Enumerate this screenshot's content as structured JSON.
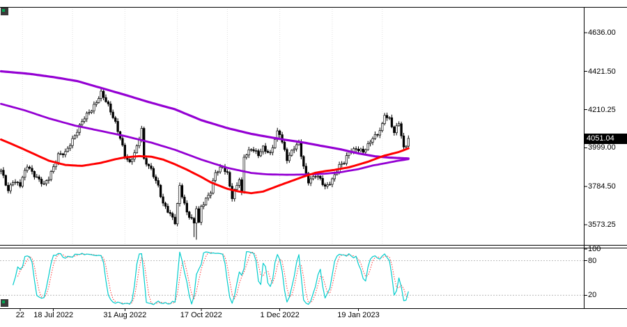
{
  "labels": {
    "current_price": "4051.04"
  },
  "colors": {
    "background": "#ffffff",
    "border": "#000000",
    "candle": "#000000",
    "candle_up_fill": "#ffffff",
    "candle_down_fill": "#000000",
    "grid": "#e0e0e0",
    "level_line": "#bbbbbb",
    "price_tag_bg": "#000000",
    "price_tag_text": "#ffffff"
  },
  "chart_data": {
    "type": "candlestick",
    "title": "",
    "candle_count": 172,
    "current_price": 4051.04,
    "price_range": {
      "min": 3462,
      "max": 4778
    },
    "price_axis": [
      [
        "4636.00",
        4636.0
      ],
      [
        "4421.50",
        4421.5
      ],
      [
        "4210.25",
        4210.25
      ],
      [
        "3999.00",
        3999.0
      ],
      [
        "3784.50",
        3784.5
      ],
      [
        "3573.25",
        3573.25
      ]
    ],
    "indicator_axis": [
      [
        "100",
        100
      ],
      [
        "80",
        80
      ],
      [
        "20",
        20
      ]
    ],
    "x_labels": [
      [
        "22",
        8
      ],
      [
        "18 Jul 2022",
        22
      ],
      [
        "31 Aug 2022",
        52
      ],
      [
        "17 Oct 2022",
        84
      ],
      [
        "1 Dec 2022",
        117
      ],
      [
        "19 Jan 2023",
        150
      ]
    ],
    "grid_indices": [
      9,
      30,
      52,
      74,
      95,
      117,
      139,
      160
    ],
    "close_keypoints": [
      [
        0,
        3870
      ],
      [
        3,
        3762
      ],
      [
        5,
        3820
      ],
      [
        8,
        3792
      ],
      [
        11,
        3900
      ],
      [
        14,
        3852
      ],
      [
        18,
        3790
      ],
      [
        20,
        3831
      ],
      [
        24,
        3962
      ],
      [
        27,
        3966
      ],
      [
        31,
        4072
      ],
      [
        34,
        4145
      ],
      [
        38,
        4210
      ],
      [
        42,
        4305
      ],
      [
        45,
        4228
      ],
      [
        48,
        4140
      ],
      [
        50,
        4058
      ],
      [
        52,
        3955
      ],
      [
        54,
        3908
      ],
      [
        57,
        4006
      ],
      [
        59,
        4110
      ],
      [
        60,
        3933
      ],
      [
        63,
        3873
      ],
      [
        66,
        3790
      ],
      [
        68,
        3693
      ],
      [
        70,
        3647
      ],
      [
        73,
        3586
      ],
      [
        75,
        3791
      ],
      [
        78,
        3640
      ],
      [
        81,
        3577
      ],
      [
        82,
        3670
      ],
      [
        83,
        3583
      ],
      [
        84,
        3678
      ],
      [
        88,
        3753
      ],
      [
        90,
        3859
      ],
      [
        93,
        3901
      ],
      [
        95,
        3856
      ],
      [
        97,
        3719
      ],
      [
        100,
        3828
      ],
      [
        101,
        3748
      ],
      [
        102,
        3956
      ],
      [
        105,
        3992
      ],
      [
        108,
        3958
      ],
      [
        110,
        4004
      ],
      [
        113,
        3966
      ],
      [
        116,
        4080
      ],
      [
        117,
        4077
      ],
      [
        120,
        3941
      ],
      [
        123,
        3998
      ],
      [
        125,
        4020
      ],
      [
        127,
        3896
      ],
      [
        129,
        3818
      ],
      [
        132,
        3844
      ],
      [
        134,
        3822
      ],
      [
        136,
        3783
      ],
      [
        139,
        3824
      ],
      [
        142,
        3895
      ],
      [
        144,
        3920
      ],
      [
        146,
        3983
      ],
      [
        149,
        3991
      ],
      [
        152,
        3973
      ],
      [
        154,
        4016
      ],
      [
        156,
        4060
      ],
      [
        158,
        4071
      ],
      [
        160,
        4119
      ],
      [
        161,
        4180
      ],
      [
        163,
        4160
      ],
      [
        165,
        4090
      ],
      [
        167,
        4136
      ],
      [
        169,
        3990
      ],
      [
        170,
        4012
      ],
      [
        171,
        4051.04
      ]
    ],
    "low_overrides": {
      "81": 3505,
      "82": 3491
    },
    "series": [
      {
        "name": "ma-mid-purple",
        "color": "#9400d3",
        "width": 2.8,
        "keypoints": [
          [
            0,
            4242
          ],
          [
            10,
            4206
          ],
          [
            20,
            4162
          ],
          [
            31,
            4122
          ],
          [
            42,
            4092
          ],
          [
            52,
            4064
          ],
          [
            63,
            4028
          ],
          [
            73,
            3988
          ],
          [
            84,
            3934
          ],
          [
            95,
            3888
          ],
          [
            105,
            3860
          ],
          [
            112,
            3852
          ],
          [
            120,
            3850
          ],
          [
            127,
            3851
          ],
          [
            136,
            3856
          ],
          [
            142,
            3863
          ],
          [
            150,
            3881
          ],
          [
            156,
            3901
          ],
          [
            161,
            3913
          ],
          [
            166,
            3926
          ],
          [
            171,
            3936
          ]
        ]
      },
      {
        "name": "ma-slow-purple",
        "color": "#9400d3",
        "width": 3.2,
        "keypoints": [
          [
            0,
            4422
          ],
          [
            12,
            4408
          ],
          [
            22,
            4390
          ],
          [
            32,
            4368
          ],
          [
            42,
            4330
          ],
          [
            52,
            4292
          ],
          [
            62,
            4252
          ],
          [
            73,
            4212
          ],
          [
            84,
            4152
          ],
          [
            95,
            4108
          ],
          [
            105,
            4076
          ],
          [
            117,
            4048
          ],
          [
            127,
            4028
          ],
          [
            136,
            4006
          ],
          [
            142,
            3992
          ],
          [
            150,
            3968
          ],
          [
            157,
            3952
          ],
          [
            163,
            3945
          ],
          [
            171,
            3940
          ]
        ]
      },
      {
        "name": "ma-fast-red",
        "color": "#ff0000",
        "width": 3,
        "keypoints": [
          [
            0,
            4045
          ],
          [
            8,
            4000
          ],
          [
            15,
            3958
          ],
          [
            20,
            3928
          ],
          [
            27,
            3904
          ],
          [
            34,
            3899
          ],
          [
            42,
            3916
          ],
          [
            48,
            3936
          ],
          [
            52,
            3946
          ],
          [
            58,
            3953
          ],
          [
            63,
            3950
          ],
          [
            68,
            3934
          ],
          [
            73,
            3908
          ],
          [
            78,
            3878
          ],
          [
            84,
            3838
          ],
          [
            88,
            3808
          ],
          [
            95,
            3772
          ],
          [
            100,
            3757
          ],
          [
            105,
            3748
          ],
          [
            110,
            3757
          ],
          [
            117,
            3792
          ],
          [
            122,
            3816
          ],
          [
            127,
            3840
          ],
          [
            132,
            3861
          ],
          [
            136,
            3870
          ],
          [
            140,
            3877
          ],
          [
            146,
            3891
          ],
          [
            150,
            3906
          ],
          [
            154,
            3922
          ],
          [
            158,
            3942
          ],
          [
            161,
            3956
          ],
          [
            164,
            3966
          ],
          [
            167,
            3976
          ],
          [
            169,
            3986
          ],
          [
            171,
            3996
          ]
        ]
      }
    ],
    "indicator": {
      "name": "stochastic-oscillator",
      "range": [
        0,
        100
      ],
      "level_lines": [
        80,
        20
      ],
      "k_period": 5,
      "slowing": 2,
      "d_period": 3,
      "colors": {
        "main": "#00cccc",
        "signal": "#ff3333"
      }
    }
  }
}
